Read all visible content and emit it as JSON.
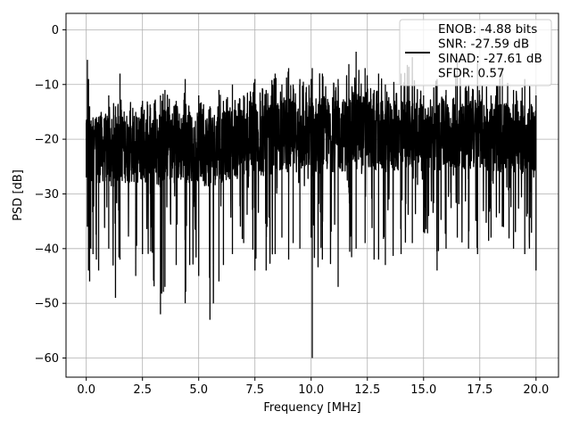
{
  "chart_data": {
    "type": "line",
    "title": "",
    "xlabel": "Frequency [MHz]",
    "ylabel": "PSD [dB]",
    "xlim": [
      -0.9,
      21.0
    ],
    "ylim": [
      -63.5,
      3.0
    ],
    "xticks": [
      "0.0",
      "2.5",
      "5.0",
      "7.5",
      "10.0",
      "12.5",
      "15.0",
      "17.5",
      "20.0"
    ],
    "xtick_values": [
      0,
      2.5,
      5,
      7.5,
      10,
      12.5,
      15,
      17.5,
      20
    ],
    "yticks": [
      "0",
      "−10",
      "−20",
      "−30",
      "−40",
      "−50",
      "−60"
    ],
    "ytick_values": [
      0,
      -10,
      -20,
      -30,
      -40,
      -50,
      -60
    ],
    "grid": true,
    "legend_position": "top-right",
    "legend": {
      "lines": [
        "ENOB: -4.88 bits",
        "SNR: -27.59 dB",
        "SINAD: -27.61 dB",
        "SFDR: 0.57"
      ]
    },
    "series": [
      {
        "color": "#000000",
        "x": [
          0.0,
          0.05,
          0.1,
          0.15,
          0.2,
          0.3,
          0.45,
          0.55,
          1.0,
          1.3,
          1.5,
          2.2,
          2.5,
          3.3,
          3.5,
          4.0,
          4.4,
          4.6,
          5.0,
          5.5,
          5.9,
          6.1,
          6.5,
          7.0,
          7.5,
          8.0,
          8.4,
          8.7,
          9.0,
          9.2,
          9.5,
          10.0,
          10.05,
          10.5,
          11.2,
          12.0,
          12.4,
          12.8,
          13.0,
          13.3,
          14.0,
          14.5,
          15.0,
          15.6,
          16.0,
          16.5,
          17.0,
          17.4,
          18.0,
          18.5,
          19.0,
          19.5,
          20.0
        ],
        "top": [
          -17,
          -5.5,
          -9,
          -14,
          -18,
          -16,
          -18,
          -16,
          -12,
          -14,
          -8,
          -15,
          -13,
          -12,
          -11,
          -13,
          -9,
          -15,
          -12,
          -14,
          -11,
          -13,
          -10,
          -12,
          -9,
          -11,
          -8,
          -10,
          -7,
          -10,
          -9,
          -9,
          -7,
          -8,
          -9,
          -4,
          -7,
          -11,
          -8,
          -10,
          -8,
          -5,
          -12,
          -9,
          -11,
          -5,
          -10,
          -6,
          -12,
          -8,
          -11,
          -9,
          -12
        ],
        "bottom": [
          -27,
          -36,
          -44,
          -46,
          -40,
          -41,
          -42,
          -44,
          -40,
          -49,
          -42,
          -45,
          -41,
          -52,
          -47,
          -43,
          -50,
          -43,
          -45,
          -53,
          -46,
          -43,
          -41,
          -39,
          -44,
          -44,
          -41,
          -38,
          -42,
          -39,
          -40,
          -38,
          -60,
          -42,
          -47,
          -40,
          -39,
          -42,
          -42,
          -43,
          -41,
          -39,
          -37,
          -44,
          -40,
          -38,
          -40,
          -41,
          -38,
          -36,
          -40,
          -41,
          -44
        ],
        "band_low": [
          -22,
          -24,
          -26,
          -28,
          -28,
          -27,
          -28,
          -28,
          -28,
          -29,
          -28,
          -28,
          -28,
          -29,
          -28,
          -28,
          -28,
          -28,
          -28,
          -29,
          -28,
          -28,
          -27,
          -27,
          -27,
          -27,
          -26,
          -26,
          -26,
          -26,
          -26,
          -26,
          -27,
          -26,
          -26,
          -26,
          -25,
          -26,
          -26,
          -26,
          -26,
          -25,
          -26,
          -26,
          -26,
          -25,
          -26,
          -25,
          -26,
          -26,
          -26,
          -26,
          -26
        ],
        "band_high": [
          -17,
          -14,
          -14,
          -15,
          -16,
          -16,
          -16,
          -16,
          -15,
          -16,
          -14,
          -16,
          -15,
          -15,
          -14,
          -15,
          -14,
          -15,
          -15,
          -15,
          -14,
          -15,
          -14,
          -14,
          -13,
          -14,
          -13,
          -13,
          -12,
          -13,
          -13,
          -13,
          -12,
          -12,
          -13,
          -11,
          -12,
          -13,
          -13,
          -13,
          -13,
          -12,
          -14,
          -13,
          -13,
          -12,
          -13,
          -12,
          -14,
          -13,
          -13,
          -13,
          -14
        ]
      }
    ]
  }
}
